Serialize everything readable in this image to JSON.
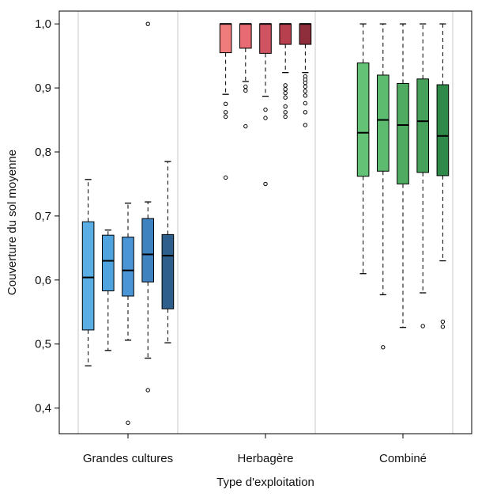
{
  "chart_data": {
    "type": "boxplot",
    "xlabel": "Type d'exploitation",
    "ylabel": "Couverture du sol moyenne",
    "ylim": [
      0.36,
      1.02
    ],
    "yticks": [
      {
        "value": 0.4,
        "label": "0,4"
      },
      {
        "value": 0.5,
        "label": "0,5"
      },
      {
        "value": 0.6,
        "label": "0,6"
      },
      {
        "value": 0.7,
        "label": "0,7"
      },
      {
        "value": 0.8,
        "label": "0,8"
      },
      {
        "value": 0.9,
        "label": "0,9"
      },
      {
        "value": 1.0,
        "label": "1,0"
      }
    ],
    "grid": false,
    "legend": "none",
    "groups": [
      {
        "label": "Grandes cultures",
        "boxes": [
          {
            "color": "#5aaee3",
            "whisker_low": 0.466,
            "q1": 0.522,
            "median": 0.604,
            "q3": 0.691,
            "whisker_high": 0.757,
            "outliers": []
          },
          {
            "color": "#4fa3df",
            "whisker_low": 0.49,
            "q1": 0.583,
            "median": 0.63,
            "q3": 0.67,
            "whisker_high": 0.678,
            "outliers": []
          },
          {
            "color": "#4a95d6",
            "whisker_low": 0.506,
            "q1": 0.575,
            "median": 0.615,
            "q3": 0.667,
            "whisker_high": 0.72,
            "outliers": [
              0.377
            ]
          },
          {
            "color": "#3f82c0",
            "whisker_low": 0.478,
            "q1": 0.597,
            "median": 0.64,
            "q3": 0.696,
            "whisker_high": 0.722,
            "outliers": [
              0.428,
              1.0
            ]
          },
          {
            "color": "#2e5f8c",
            "whisker_low": 0.502,
            "q1": 0.555,
            "median": 0.638,
            "q3": 0.671,
            "whisker_high": 0.785,
            "outliers": []
          }
        ]
      },
      {
        "label": "Herbagère",
        "boxes": [
          {
            "color": "#f07c7c",
            "whisker_low": 0.89,
            "q1": 0.955,
            "median": 1.0,
            "q3": 1.0,
            "whisker_high": 1.0,
            "outliers": [
              0.875,
              0.862,
              0.855,
              0.76
            ]
          },
          {
            "color": "#e86a72",
            "whisker_low": 0.91,
            "q1": 0.962,
            "median": 1.0,
            "q3": 1.0,
            "whisker_high": 1.0,
            "outliers": [
              0.902,
              0.896,
              0.84
            ]
          },
          {
            "color": "#cf5360",
            "whisker_low": 0.887,
            "q1": 0.954,
            "median": 1.0,
            "q3": 1.0,
            "whisker_high": 1.0,
            "outliers": [
              0.866,
              0.853,
              0.75
            ]
          },
          {
            "color": "#b8404e",
            "whisker_low": 0.924,
            "q1": 0.968,
            "median": 1.0,
            "q3": 1.0,
            "whisker_high": 1.0,
            "outliers": [
              0.904,
              0.898,
              0.892,
              0.885,
              0.871,
              0.862,
              0.855
            ]
          },
          {
            "color": "#8e2e3c",
            "whisker_low": 0.924,
            "q1": 0.968,
            "median": 1.0,
            "q3": 1.0,
            "whisker_high": 1.0,
            "outliers": [
              0.918,
              0.913,
              0.908,
              0.902,
              0.895,
              0.888,
              0.876,
              0.862,
              0.842
            ]
          }
        ]
      },
      {
        "label": "Combiné",
        "boxes": [
          {
            "color": "#63c275",
            "whisker_low": 0.61,
            "q1": 0.762,
            "median": 0.83,
            "q3": 0.939,
            "whisker_high": 1.0,
            "outliers": []
          },
          {
            "color": "#5cbb6e",
            "whisker_low": 0.577,
            "q1": 0.77,
            "median": 0.85,
            "q3": 0.92,
            "whisker_high": 1.0,
            "outliers": [
              0.495
            ]
          },
          {
            "color": "#50ab62",
            "whisker_low": 0.526,
            "q1": 0.75,
            "median": 0.842,
            "q3": 0.907,
            "whisker_high": 1.0,
            "outliers": []
          },
          {
            "color": "#45a059",
            "whisker_low": 0.58,
            "q1": 0.768,
            "median": 0.848,
            "q3": 0.914,
            "whisker_high": 1.0,
            "outliers": [
              0.528
            ]
          },
          {
            "color": "#2f8a4a",
            "whisker_low": 0.63,
            "q1": 0.763,
            "median": 0.825,
            "q3": 0.905,
            "whisker_high": 1.0,
            "outliers": [
              0.535,
              0.527
            ]
          }
        ]
      }
    ]
  }
}
